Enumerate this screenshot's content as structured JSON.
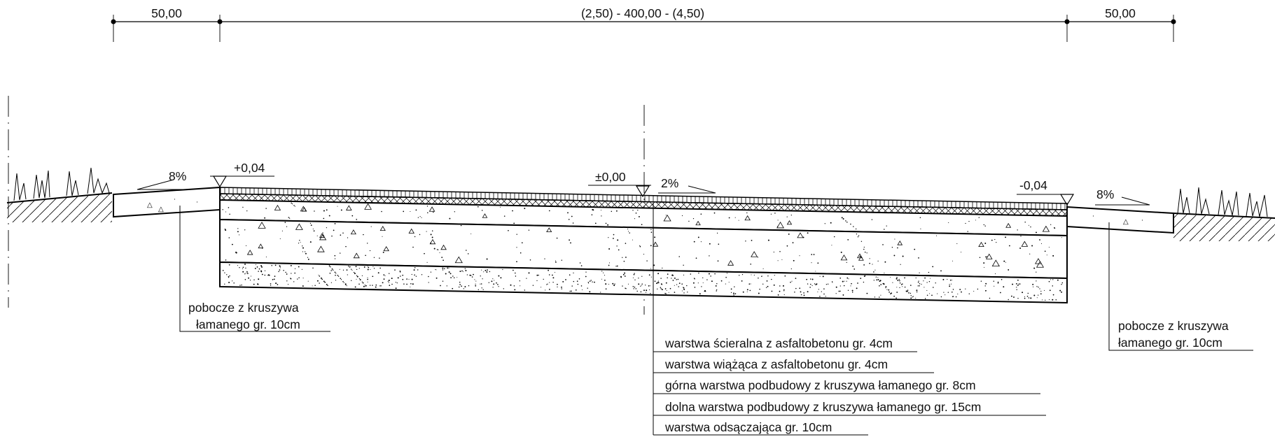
{
  "dimensions": {
    "left": "50,00",
    "center": "(2,50) - 400,00 - (4,50)",
    "right": "50,00"
  },
  "elevations": {
    "left": "+0,04",
    "center": "±0,00",
    "right": "-0,04"
  },
  "slopes": {
    "left_shoulder": "8%",
    "carriageway": "2%",
    "right_shoulder": "8%"
  },
  "shoulder_labels": {
    "left": [
      "pobocze z kruszywa",
      "łamanego gr. 10cm"
    ],
    "right": [
      "pobocze z kruszywa",
      "łamanego gr. 10cm"
    ]
  },
  "layers": [
    "warstwa ścieralna z asfaltobetonu gr. 4cm",
    "warstwa wiążąca z asfaltobetonu gr. 4cm",
    "górna warstwa podbudowy z kruszywa łamanego gr. 8cm",
    "dolna warstwa podbudowy z kruszywa łamanego gr. 15cm",
    "warstwa odsączająca gr. 10cm"
  ]
}
